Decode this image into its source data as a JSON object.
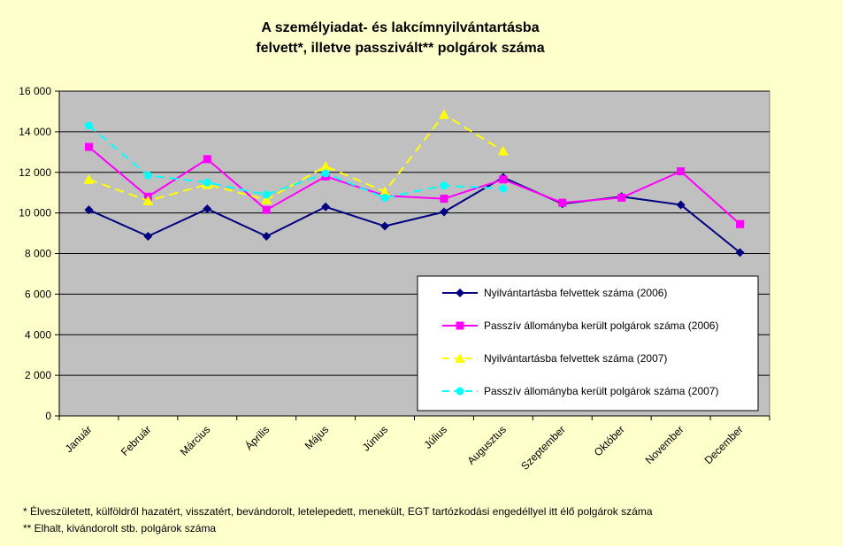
{
  "chart_data": {
    "type": "line",
    "title_lines": [
      "A személyiadat- és lakcímnyilvántartásba",
      "felvett*, illetve passzivált** polgárok száma"
    ],
    "xlabel": "",
    "ylabel": "",
    "categories": [
      "Január",
      "Február",
      "Március",
      "Április",
      "Május",
      "Június",
      "Július",
      "Augusztus",
      "Szeptember",
      "Október",
      "November",
      "December"
    ],
    "ylim": [
      0,
      16000
    ],
    "yticks": [
      0,
      2000,
      4000,
      6000,
      8000,
      10000,
      12000,
      14000,
      16000
    ],
    "ytick_labels": [
      "0",
      "2 000",
      "4 000",
      "6 000",
      "8 000",
      "10 000",
      "12 000",
      "14 000",
      "16 000"
    ],
    "grid": true,
    "plot_background": "#C0C0C0",
    "legend_position": "lower-right",
    "series": [
      {
        "name": "Nyilvántartásba felvettek száma (2006)",
        "color": "#000080",
        "marker": "diamond",
        "dash": "solid",
        "values": [
          10150,
          8850,
          10200,
          8850,
          10300,
          9350,
          10050,
          11750,
          10450,
          10800,
          10400,
          8050
        ]
      },
      {
        "name": "Passzív állományba került polgárok száma (2006)",
        "color": "#FF00FF",
        "marker": "square",
        "dash": "solid",
        "values": [
          13250,
          10800,
          12650,
          10150,
          11800,
          10850,
          10700,
          11650,
          10500,
          10750,
          12050,
          9450
        ]
      },
      {
        "name": "Nyilvántartásba felvettek száma (2007)",
        "color": "#FFFF00",
        "marker": "triangle",
        "dash": "dashed",
        "values": [
          11650,
          10600,
          11400,
          10650,
          12300,
          11050,
          14850,
          13050,
          null,
          null,
          null,
          null
        ]
      },
      {
        "name": "Passzív állományba került polgárok száma (2007)",
        "color": "#00FFFF",
        "marker": "circle",
        "dash": "dashed",
        "values": [
          14300,
          11850,
          11500,
          10900,
          11950,
          10750,
          11350,
          11200,
          null,
          null,
          null,
          null
        ]
      }
    ]
  },
  "footnotes": [
    "* Élveszületett, külföldről hazatért, visszatért, bevándorolt, letelepedett, menekült, EGT tartózkodási engedéllyel itt élő  polgárok száma",
    "** Elhalt, kivándorolt stb. polgárok száma"
  ]
}
